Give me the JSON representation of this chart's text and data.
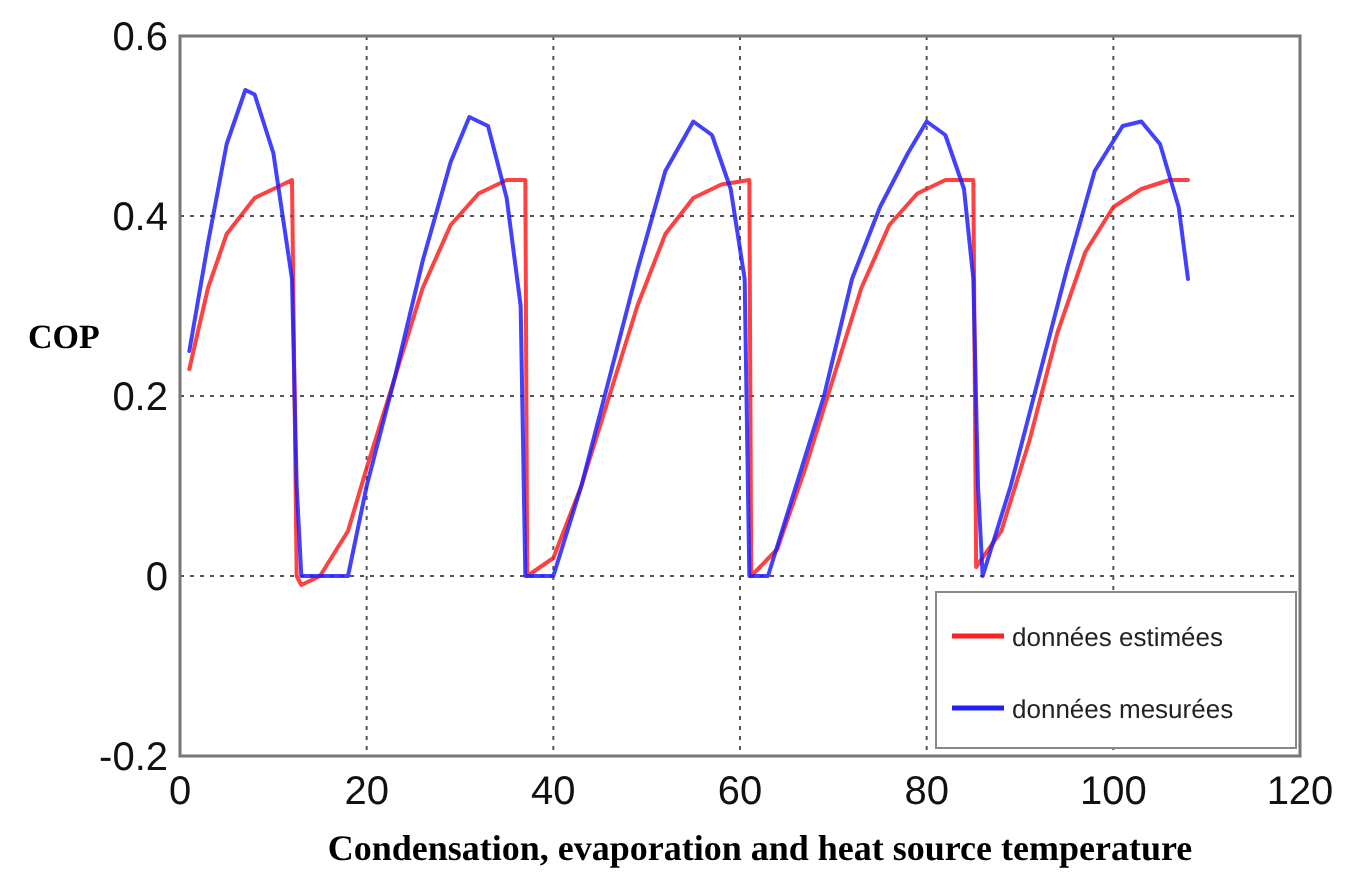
{
  "chart_data": {
    "type": "line",
    "xlabel": "Condensation, evaporation and heat source temperature",
    "ylabel": "COP",
    "xlim": [
      0,
      120
    ],
    "ylim": [
      -0.2,
      0.6
    ],
    "xticks": [
      0,
      20,
      40,
      60,
      80,
      100,
      120
    ],
    "yticks": [
      -0.2,
      0,
      0.2,
      0.4,
      0.6
    ],
    "grid": true,
    "legend": "bottom right",
    "line_style": "solid",
    "marker": "none",
    "series": [
      {
        "name": "données estimées",
        "color": "#ff2020",
        "x": [
          1,
          3,
          5,
          8,
          10,
          12,
          12.5,
          13,
          15,
          18,
          20,
          23,
          26,
          29,
          32,
          35,
          37,
          37.2,
          40,
          43,
          46,
          49,
          52,
          55,
          58,
          61,
          61.2,
          64,
          67,
          70,
          73,
          76,
          79,
          82,
          85,
          85.3,
          88,
          91,
          94,
          97,
          100,
          103,
          106,
          108
        ],
        "values": [
          0.23,
          0.32,
          0.38,
          0.42,
          0.43,
          0.44,
          0,
          -0.01,
          0,
          0.05,
          0.12,
          0.22,
          0.32,
          0.39,
          0.425,
          0.44,
          0.44,
          0,
          0.02,
          0.1,
          0.2,
          0.3,
          0.38,
          0.42,
          0.435,
          0.44,
          0,
          0.03,
          0.12,
          0.22,
          0.32,
          0.39,
          0.425,
          0.44,
          0.44,
          0.01,
          0.05,
          0.15,
          0.27,
          0.36,
          0.41,
          0.43,
          0.44,
          0.44
        ]
      },
      {
        "name": "données mesurées",
        "color": "#2020ff",
        "x": [
          1,
          3,
          5,
          7,
          8,
          10,
          12,
          12.5,
          13,
          18,
          20,
          23,
          26,
          29,
          31,
          33,
          35,
          36.5,
          37,
          40,
          43,
          46,
          49,
          52,
          55,
          57,
          59,
          60.5,
          61,
          63,
          66,
          69,
          72,
          75,
          78,
          80,
          82,
          84,
          85,
          85.5,
          86,
          89,
          92,
          95,
          98,
          101,
          103,
          105,
          107,
          108
        ],
        "values": [
          0.25,
          0.37,
          0.48,
          0.54,
          0.535,
          0.47,
          0.33,
          0.1,
          0,
          0,
          0.1,
          0.22,
          0.35,
          0.46,
          0.51,
          0.5,
          0.42,
          0.3,
          0,
          0,
          0.1,
          0.22,
          0.34,
          0.45,
          0.505,
          0.49,
          0.43,
          0.33,
          0,
          0,
          0.1,
          0.2,
          0.33,
          0.41,
          0.47,
          0.505,
          0.49,
          0.43,
          0.33,
          0.1,
          0,
          0.1,
          0.22,
          0.34,
          0.45,
          0.5,
          0.505,
          0.48,
          0.41,
          0.33
        ]
      }
    ]
  }
}
